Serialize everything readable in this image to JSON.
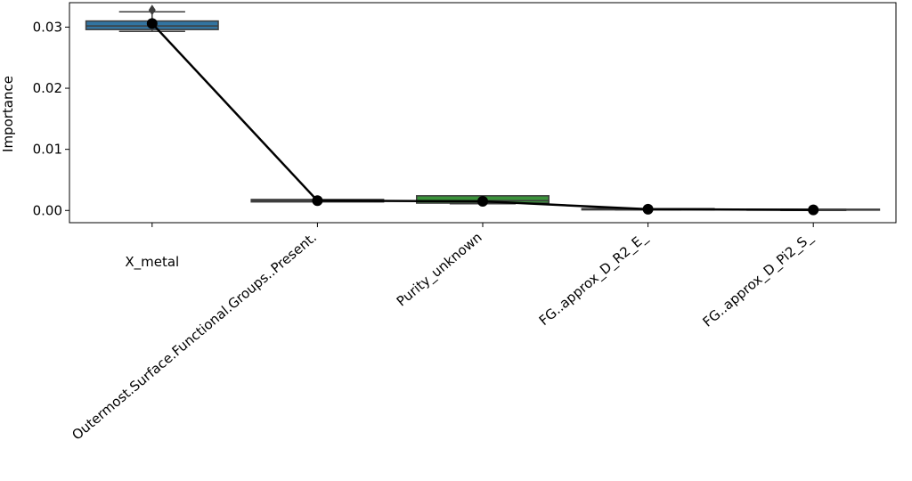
{
  "chart_data": {
    "type": "box",
    "y_label": "Importance",
    "categories": [
      "X_metal",
      "Outermost.Surface.Functional.Groups..Present.",
      "Purity_unknown",
      "FG..approx_D_R2_E_",
      "FG..approx_D_Pi2_S_"
    ],
    "colors": [
      "#3274a1",
      "#e1812c",
      "#3a923a",
      "#c03d3e",
      "#9372b2"
    ],
    "whisker_low": [
      0.0293,
      0.0015,
      0.0011,
      0.0001,
      0.0
    ],
    "q1": [
      0.0296,
      0.0014,
      0.0012,
      0.0001,
      0.0001
    ],
    "median": [
      0.0302,
      0.0016,
      0.0016,
      0.0002,
      0.0001
    ],
    "q3": [
      0.031,
      0.0018,
      0.0024,
      0.0003,
      0.0002
    ],
    "whisker_high": [
      0.0325,
      0.0017,
      0.0023,
      0.0003,
      0.0002
    ],
    "outliers": [
      [
        0.0328
      ],
      [],
      [],
      [],
      []
    ],
    "mean": [
      0.0306,
      0.0016,
      0.0015,
      0.0002,
      0.0001
    ],
    "line_color": "#000000",
    "ylim": [
      -0.002,
      0.034
    ],
    "yticks": [
      {
        "value": 0,
        "label": "0.00"
      },
      0.01,
      0.02,
      0.03
    ]
  }
}
